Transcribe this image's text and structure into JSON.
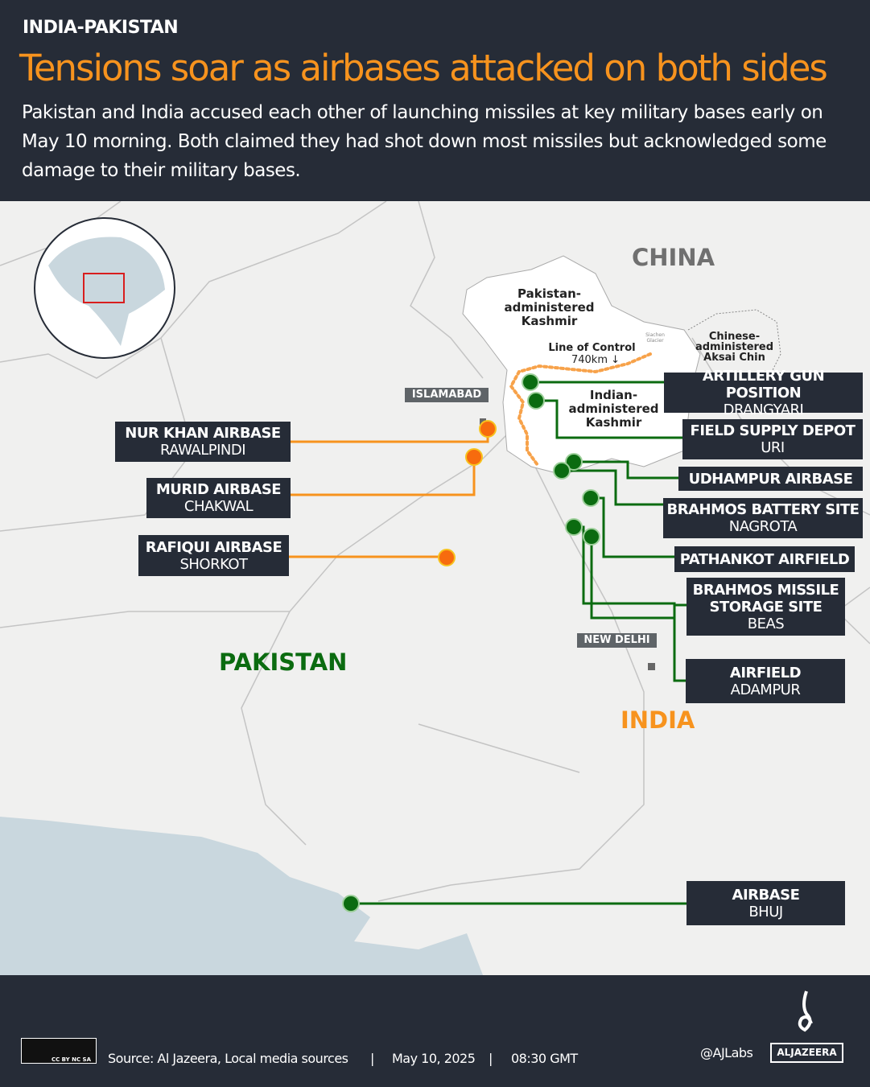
{
  "header": {
    "kicker": "INDIA-PAKISTAN",
    "title": "Tensions soar as airbases attacked on both sides",
    "subtitle": "Pakistan and India accused each other of launching missiles at key military bases early on May 10 morning. Both claimed they had shot down most missiles but acknowledged some damage to their military bases."
  },
  "map": {
    "countries": {
      "china": "CHINA",
      "pakistan": "PAKISTAN",
      "india": "INDIA"
    },
    "regions": {
      "pak_kashmir": "Pakistan-\nadministered\nKashmir",
      "ind_kashmir": "Indian-\nadministered\nKashmir",
      "aksai_chin": "Chinese-\nadministered\nAksai Chin",
      "siachen": "Siachen Glacier",
      "loc": "Line of Control",
      "loc_length": "740km ↓"
    },
    "cities": {
      "islamabad": "ISLAMABAD",
      "new_delhi": "NEW DELHI"
    },
    "colors": {
      "pakistan_sites": "#f7931e",
      "india_sites": "#0b6b10",
      "loc": "#f7a24a"
    },
    "pakistan_sites": [
      {
        "name": "NUR KHAN AIRBASE",
        "place": "RAWALPINDI"
      },
      {
        "name": "MURID AIRBASE",
        "place": "CHAKWAL"
      },
      {
        "name": "RAFIQUI AIRBASE",
        "place": "SHORKOT"
      }
    ],
    "india_sites": [
      {
        "name": "ARTILLERY GUN POSITION",
        "place": "DRANGYARI"
      },
      {
        "name": "FIELD SUPPLY DEPOT",
        "place": "URI"
      },
      {
        "name": "UDHAMPUR AIRBASE",
        "place": ""
      },
      {
        "name": "BRAHMOS BATTERY SITE",
        "place": "NAGROTA"
      },
      {
        "name": "PATHANKOT AIRFIELD",
        "place": ""
      },
      {
        "name": "BRAHMOS MISSILE STORAGE SITE",
        "place": "BEAS"
      },
      {
        "name": "AIRFIELD",
        "place": "ADAMPUR"
      },
      {
        "name": "AIRBASE",
        "place": "BHUJ"
      }
    ]
  },
  "footer": {
    "license": "CC BY NC SA",
    "source": "Source:  Al Jazeera, Local media sources",
    "sep": "|",
    "date": "May 10, 2025",
    "time": "08:30 GMT",
    "handle": "@AJLabs",
    "brand": "ALJAZEERA"
  }
}
